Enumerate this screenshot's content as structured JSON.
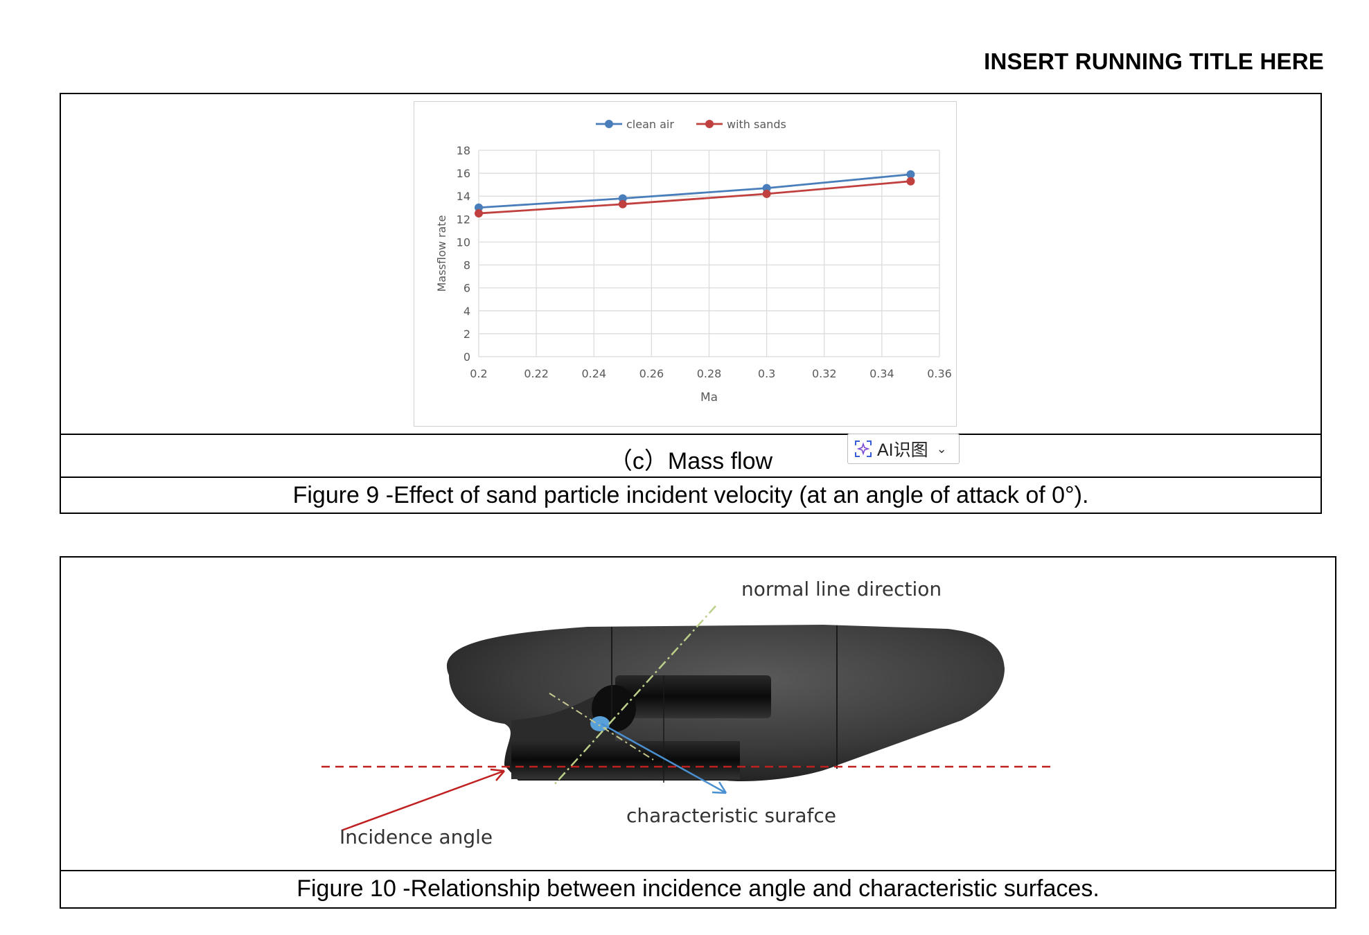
{
  "header": {
    "running_title": "INSERT RUNNING TITLE HERE"
  },
  "figure9": {
    "subcaption": "（c）Mass flow",
    "caption": "Figure 9 -Effect of sand particle incident velocity (at an angle of attack of 0°)."
  },
  "ai_badge": {
    "label": "AI识图",
    "icon": "ai-recognize-icon"
  },
  "chart_data": {
    "type": "line",
    "xlabel": "Ma",
    "ylabel": "Massflow rate",
    "xlim": [
      0.2,
      0.36
    ],
    "ylim": [
      0,
      18
    ],
    "x_ticks": [
      "0.2",
      "0.22",
      "0.24",
      "0.26",
      "0.28",
      "0.3",
      "0.32",
      "0.34",
      "0.36"
    ],
    "y_ticks": [
      "0",
      "2",
      "4",
      "6",
      "8",
      "10",
      "12",
      "14",
      "16",
      "18"
    ],
    "grid": true,
    "legend_position": "top",
    "series": [
      {
        "name": "clean air",
        "color": "#4a7ebb",
        "x": [
          0.2,
          0.25,
          0.3,
          0.35
        ],
        "values": [
          13.0,
          13.8,
          14.7,
          15.9
        ]
      },
      {
        "name": "with sands",
        "color": "#c0403f",
        "x": [
          0.2,
          0.25,
          0.3,
          0.35
        ],
        "values": [
          12.5,
          13.3,
          14.2,
          15.3
        ]
      }
    ]
  },
  "figure10": {
    "labels": {
      "normal_line": "normal line direction",
      "characteristic": "characteristic surafce",
      "incidence": "Incidence angle"
    },
    "caption": "Figure 10 -Relationship between incidence angle and characteristic surfaces."
  }
}
